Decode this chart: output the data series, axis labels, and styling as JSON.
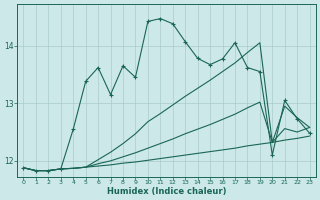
{
  "xlabel": "Humidex (Indice chaleur)",
  "bg_color": "#cce8e8",
  "grid_color": "#aacccc",
  "line_color": "#1a6655",
  "xlim": [
    -0.5,
    23.5
  ],
  "ylim": [
    11.72,
    14.72
  ],
  "ytick_vals": [
    12,
    13,
    14
  ],
  "xtick_vals": [
    0,
    1,
    2,
    3,
    4,
    5,
    6,
    7,
    8,
    9,
    10,
    11,
    12,
    13,
    14,
    15,
    16,
    17,
    18,
    19,
    20,
    21,
    22,
    23
  ],
  "line1_y": [
    11.88,
    11.83,
    11.83,
    11.86,
    11.87,
    11.89,
    11.91,
    11.93,
    11.96,
    11.98,
    12.01,
    12.04,
    12.07,
    12.1,
    12.13,
    12.16,
    12.19,
    12.22,
    12.26,
    12.29,
    12.32,
    12.36,
    12.39,
    12.43
  ],
  "line2_y": [
    11.88,
    11.83,
    11.83,
    11.86,
    11.87,
    11.89,
    11.95,
    12.0,
    12.07,
    12.14,
    12.22,
    12.3,
    12.38,
    12.47,
    12.55,
    12.63,
    12.72,
    12.81,
    12.92,
    13.02,
    12.32,
    12.56,
    12.5,
    12.58
  ],
  "line3_y": [
    11.88,
    11.83,
    11.83,
    11.86,
    11.87,
    11.89,
    12.02,
    12.15,
    12.3,
    12.47,
    12.68,
    12.82,
    12.97,
    13.12,
    13.26,
    13.4,
    13.55,
    13.7,
    13.88,
    14.05,
    12.32,
    12.95,
    12.75,
    12.58
  ],
  "line4_y": [
    11.88,
    11.83,
    11.83,
    11.86,
    12.55,
    13.38,
    13.62,
    13.15,
    13.65,
    13.45,
    14.42,
    14.47,
    14.38,
    14.07,
    13.78,
    13.67,
    13.77,
    14.05,
    13.62,
    13.55,
    12.1,
    13.05,
    12.73,
    12.48
  ]
}
